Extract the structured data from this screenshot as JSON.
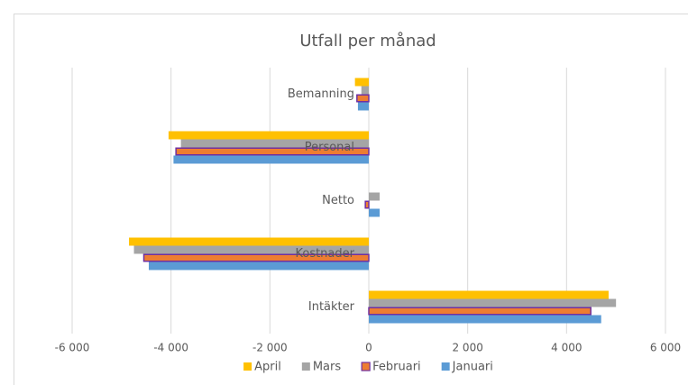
{
  "chart_data": {
    "type": "barh",
    "title": "Utfall per månad",
    "categories": [
      "Intäkter",
      "Kostnader",
      "Netto",
      "Personal",
      "Bemanning"
    ],
    "series": [
      {
        "name": "Januari",
        "color": "#5b9bd5",
        "values": [
          4700,
          -4450,
          220,
          -3950,
          -220
        ]
      },
      {
        "name": "Februari",
        "color": "#ed7d31",
        "edgecolor": "#7030a0",
        "values": [
          4490,
          -4550,
          -70,
          -3900,
          -240
        ]
      },
      {
        "name": "Mars",
        "color": "#a5a5a5",
        "values": [
          5000,
          -4750,
          220,
          -3800,
          -150
        ]
      },
      {
        "name": "April",
        "color": "#ffc000",
        "values": [
          4850,
          -4850,
          0,
          -4050,
          -280
        ]
      }
    ],
    "xlim": [
      -6000,
      6000
    ],
    "xticks": [
      {
        "value": -6000,
        "label": "-6 000"
      },
      {
        "value": -4000,
        "label": "-4 000"
      },
      {
        "value": -2000,
        "label": "-2 000"
      },
      0,
      {
        "value": 2000,
        "label": "2 000"
      },
      {
        "value": 4000,
        "label": "4 000"
      },
      {
        "value": 6000,
        "label": "6 000"
      }
    ],
    "grid": true,
    "legend": "bottom"
  }
}
